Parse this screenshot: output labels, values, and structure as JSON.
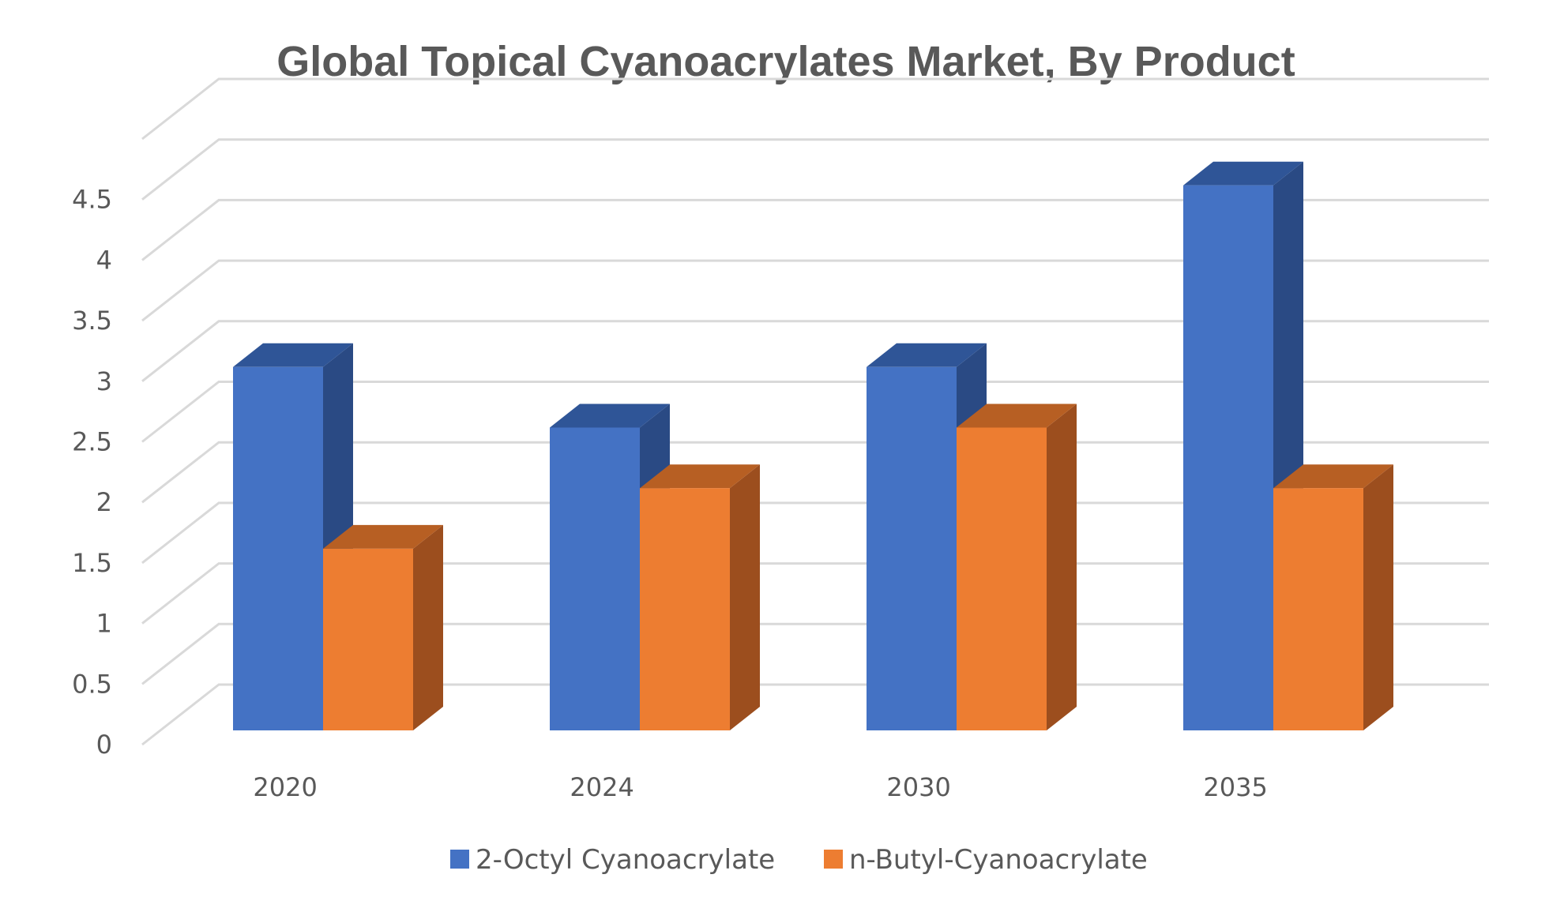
{
  "chart_data": {
    "type": "bar",
    "title": "Global Topical Cyanoacrylates Market, By Product",
    "categories": [
      "2020",
      "2024",
      "2030",
      "2035"
    ],
    "series": [
      {
        "name": "2-Octyl Cyanoacrylate",
        "values": [
          3.0,
          2.5,
          3.0,
          4.5
        ],
        "color": "#4472c4",
        "top_color": "#2f5597",
        "side_color": "#2a4a84"
      },
      {
        "name": "n-Butyl-Cyanoacrylate",
        "values": [
          1.5,
          2.0,
          2.5,
          2.0
        ],
        "color": "#ed7d31",
        "top_color": "#b75f23",
        "side_color": "#9c4e1e"
      }
    ],
    "ylim": [
      0,
      5
    ],
    "yticks": [
      0,
      0.5,
      1,
      1.5,
      2,
      2.5,
      3,
      3.5,
      4,
      4.5
    ],
    "ytick_labels": [
      "0",
      "0.5",
      "1",
      "1.5",
      "2",
      "2.5",
      "3",
      "3.5",
      "4",
      "4.5"
    ],
    "xlabel": "",
    "ylabel": "",
    "grid": true,
    "legend_position": "bottom",
    "style": "3d-clustered-column"
  }
}
